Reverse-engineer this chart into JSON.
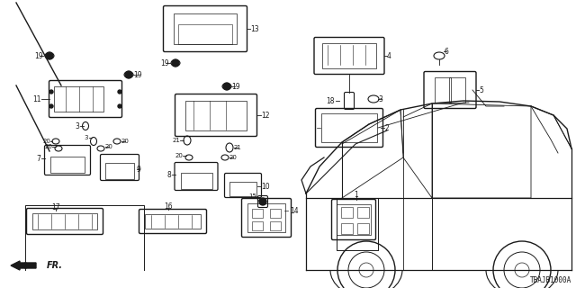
{
  "bg_color": "#ffffff",
  "diagram_code": "TBAJB1000A",
  "line_color": "#1a1a1a",
  "text_color": "#1a1a1a"
}
